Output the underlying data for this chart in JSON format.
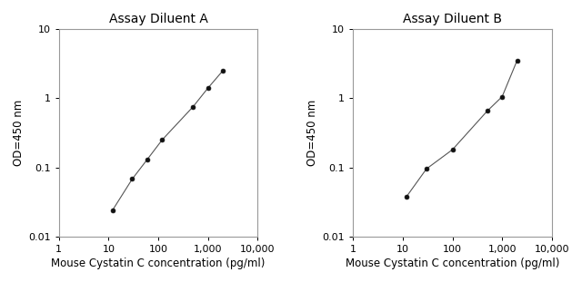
{
  "title_A": "Assay Diluent A",
  "title_B": "Assay Diluent B",
  "xlabel": "Mouse Cystatin C concentration (pg/ml)",
  "ylabel": "OD=450 nm",
  "x_A": [
    12,
    30,
    60,
    120,
    500,
    1000,
    2000
  ],
  "y_A": [
    0.024,
    0.068,
    0.13,
    0.25,
    0.75,
    1.4,
    2.5
  ],
  "x_B": [
    12,
    30,
    100,
    500,
    1000,
    2000
  ],
  "y_B": [
    0.038,
    0.095,
    0.18,
    0.65,
    1.05,
    3.5
  ],
  "xlim": [
    1,
    10000
  ],
  "ylim": [
    0.01,
    10
  ],
  "line_color": "#555555",
  "marker_color": "#111111",
  "bg_color": "#ffffff",
  "title_fontsize": 10,
  "label_fontsize": 8.5,
  "tick_fontsize": 8
}
